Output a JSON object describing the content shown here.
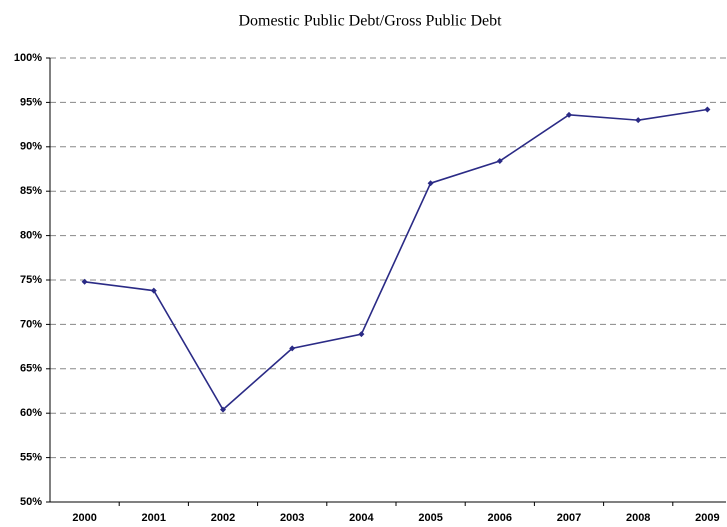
{
  "chart_data": {
    "type": "line",
    "title": "Domestic Public Debt/Gross Public Debt",
    "categories": [
      "2000",
      "2001",
      "2002",
      "2003",
      "2004",
      "2005",
      "2006",
      "2007",
      "2008",
      "2009"
    ],
    "series": [
      {
        "color": "#2b2b86",
        "values": [
          74.8,
          73.8,
          60.4,
          67.3,
          68.9,
          85.9,
          88.4,
          93.6,
          93.0,
          94.2
        ]
      }
    ],
    "ylim": [
      50,
      100
    ],
    "yticks": [
      {
        "value": 50,
        "label": "50%"
      },
      {
        "value": 55,
        "label": "55%"
      },
      {
        "value": 60,
        "label": "60%"
      },
      {
        "value": 65,
        "label": "65%"
      },
      {
        "value": 70,
        "label": "70%"
      },
      {
        "value": 75,
        "label": "75%"
      },
      {
        "value": 80,
        "label": "80%"
      },
      {
        "value": 85,
        "label": "85%"
      },
      {
        "value": 90,
        "label": "90%"
      },
      {
        "value": 95,
        "label": "95%"
      },
      {
        "value": 100,
        "label": "100%"
      }
    ],
    "grid": true
  }
}
